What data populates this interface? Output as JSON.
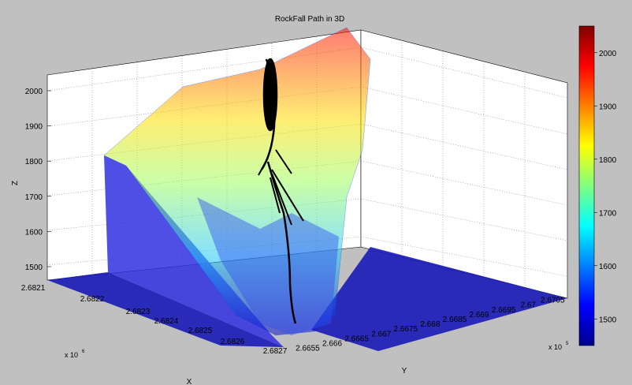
{
  "window": {
    "background": "#c0c0c0"
  },
  "chart_data": {
    "type": "surface",
    "title": "RockFall Path in 3D",
    "xlabel": "X",
    "ylabel": "Y",
    "zlabel": "Z",
    "x_ticks": [
      "2.6821",
      "2.6822",
      "2.6823",
      "2.6824",
      "2.6825",
      "2.6826",
      "2.6827"
    ],
    "x_exponent_label": "x 10",
    "x_exponent": "6",
    "y_ticks": [
      "2.6655",
      "2.666",
      "2.6665",
      "2.667",
      "2.6675",
      "2.668",
      "2.6685",
      "2.669",
      "2.6695",
      "2.67",
      "2.6705"
    ],
    "y_exponent_label": "x 10",
    "y_exponent": "5",
    "z_ticks": [
      "1500",
      "1600",
      "1700",
      "1800",
      "1900",
      "2000"
    ],
    "zlim": [
      1450,
      2050
    ],
    "colorbar": {
      "ticks": [
        "1500",
        "1600",
        "1700",
        "1800",
        "1900",
        "2000"
      ],
      "range": [
        1450,
        2050
      ],
      "colormap": "jet"
    },
    "surface_style": "mesh",
    "rockfall_path_color": "#000000",
    "grid": true
  }
}
